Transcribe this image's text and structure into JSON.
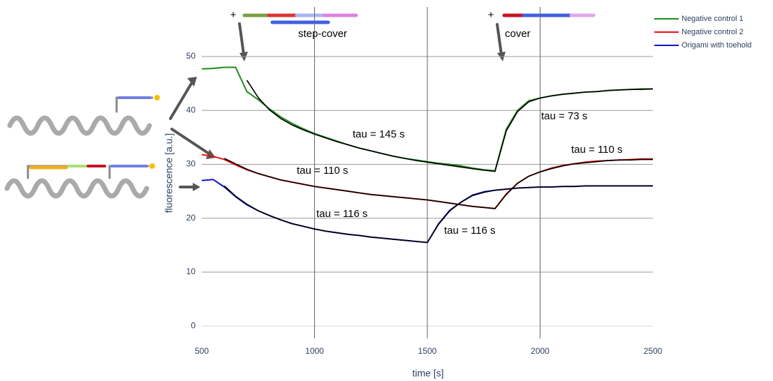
{
  "chart_data": {
    "type": "line",
    "x_label": "time [s]",
    "y_label": "fluorescence [a.u.]",
    "xlim": [
      500,
      2500
    ],
    "ylim": [
      -2.3,
      59.2
    ],
    "xticks": [
      500,
      1000,
      1500,
      2000,
      2500
    ],
    "yticks": [
      0,
      10,
      20,
      30,
      40,
      50
    ],
    "grid": true,
    "legend": "top-right",
    "x": [
      500,
      550,
      600,
      650,
      700,
      750,
      800,
      850,
      900,
      950,
      1000,
      1050,
      1100,
      1150,
      1200,
      1250,
      1300,
      1350,
      1400,
      1450,
      1500,
      1550,
      1600,
      1650,
      1700,
      1750,
      1800,
      1850,
      1900,
      1950,
      2000,
      2050,
      2100,
      2150,
      2200,
      2250,
      2300,
      2350,
      2400,
      2450,
      2500
    ],
    "series": [
      {
        "name": "Negative control 1",
        "color": "#1a8a1a",
        "values": [
          47.7,
          47.8,
          48.0,
          48.0,
          43.5,
          42.0,
          40.3,
          38.8,
          37.6,
          36.6,
          35.7,
          35.0,
          34.3,
          33.6,
          33.0,
          32.5,
          32.0,
          31.5,
          31.1,
          30.8,
          30.5,
          30.2,
          30.0,
          29.7,
          29.3,
          29.0,
          28.8,
          36.5,
          40.0,
          41.8,
          42.3,
          42.7,
          43.0,
          43.2,
          43.4,
          43.5,
          43.7,
          43.8,
          43.9,
          44.0,
          44.0
        ]
      },
      {
        "name": "Negative control 2",
        "color": "#ee1111",
        "values": [
          31.8,
          31.5,
          30.9,
          29.9,
          29.0,
          28.3,
          27.7,
          27.1,
          26.7,
          26.3,
          25.9,
          25.6,
          25.3,
          25.0,
          24.7,
          24.4,
          24.2,
          24.0,
          23.8,
          23.6,
          23.4,
          23.1,
          22.8,
          22.5,
          22.2,
          22.0,
          21.8,
          24.5,
          26.5,
          27.8,
          28.6,
          29.3,
          29.8,
          30.1,
          30.4,
          30.6,
          30.7,
          30.8,
          30.9,
          31.0,
          31.0
        ]
      },
      {
        "name": "Origami with toehold",
        "color": "#1111cc",
        "values": [
          27.0,
          27.2,
          25.8,
          24.0,
          22.5,
          21.4,
          20.5,
          19.7,
          19.0,
          18.5,
          18.0,
          17.6,
          17.3,
          17.0,
          16.8,
          16.5,
          16.3,
          16.1,
          15.9,
          15.7,
          15.5,
          19.0,
          21.5,
          23.0,
          24.3,
          24.9,
          25.2,
          25.4,
          25.6,
          25.7,
          25.8,
          25.8,
          25.9,
          25.9,
          26.0,
          26.0,
          26.0,
          26.0,
          26.0,
          26.0,
          26.0
        ]
      }
    ],
    "fits": [
      {
        "color": "#000000",
        "values": [
          null,
          null,
          null,
          null,
          45.6,
          42.4,
          40.1,
          38.5,
          37.3,
          36.4,
          35.6,
          34.9,
          34.2,
          33.6,
          33.0,
          32.5,
          32.0,
          31.5,
          31.1,
          30.7,
          30.4,
          30.1,
          29.8,
          29.5,
          29.2,
          28.9,
          28.7,
          36.2,
          39.8,
          41.6,
          42.3,
          42.7,
          43.0,
          43.2,
          43.4,
          43.5,
          43.7,
          43.8,
          43.9,
          43.9,
          44.0
        ]
      },
      {
        "color": "#000000",
        "values": [
          null,
          null,
          31.1,
          30.1,
          29.1,
          28.3,
          27.7,
          27.1,
          26.7,
          26.3,
          25.9,
          25.6,
          25.3,
          25.0,
          24.7,
          24.4,
          24.2,
          24.0,
          23.8,
          23.6,
          23.4,
          23.1,
          22.8,
          22.5,
          22.2,
          22.0,
          21.8,
          24.4,
          26.5,
          27.8,
          28.6,
          29.2,
          29.7,
          30.1,
          30.3,
          30.5,
          30.7,
          30.8,
          30.8,
          30.9,
          30.9
        ]
      },
      {
        "color": "#000000",
        "values": [
          null,
          null,
          26.0,
          24.1,
          22.6,
          21.4,
          20.5,
          19.7,
          19.0,
          18.5,
          18.0,
          17.6,
          17.3,
          17.0,
          16.8,
          16.5,
          16.3,
          16.1,
          15.9,
          15.7,
          15.5,
          18.9,
          21.4,
          23.0,
          24.2,
          24.8,
          25.2,
          25.4,
          25.6,
          25.7,
          25.8,
          25.8,
          25.9,
          25.9,
          26.0,
          26.0,
          26.0,
          26.0,
          26.0,
          26.0,
          26.0
        ]
      }
    ],
    "annotations": [
      "tau = 145 s",
      "tau = 110 s",
      "tau = 116 s",
      "tau = 116 s",
      "tau = 73 s",
      "tau = 110 s",
      "step-cover",
      "cover",
      "+",
      "+"
    ]
  }
}
